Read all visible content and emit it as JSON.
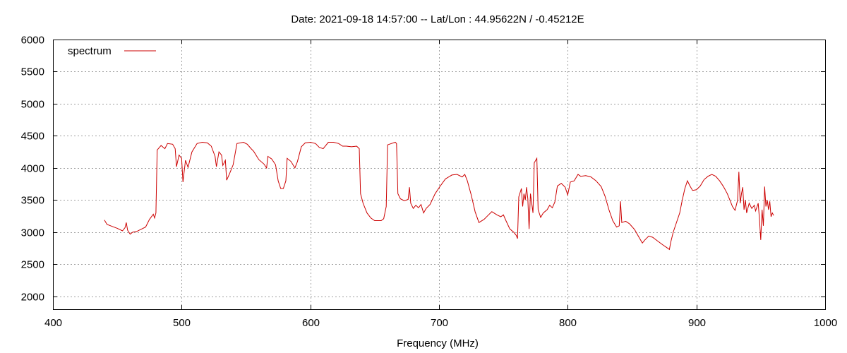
{
  "chart_data": {
    "type": "line",
    "title": "Date: 2021-09-18 14:57:00  --  Lat/Lon : 44.95622N / -0.45212E",
    "xlabel": "Frequency (MHz)",
    "ylabel": "",
    "xlim": [
      400,
      1000
    ],
    "ylim": [
      1800,
      6000
    ],
    "xticks": [
      400,
      500,
      600,
      700,
      800,
      900,
      1000
    ],
    "yticks": [
      2000,
      2500,
      3000,
      3500,
      4000,
      4500,
      5000,
      5500,
      6000
    ],
    "grid": true,
    "legend_position": "top-left",
    "series": [
      {
        "name": "spectrum",
        "color": "#cc0000",
        "points": [
          [
            440,
            3190
          ],
          [
            442,
            3120
          ],
          [
            446,
            3090
          ],
          [
            450,
            3060
          ],
          [
            454,
            3020
          ],
          [
            456,
            3070
          ],
          [
            457,
            3150
          ],
          [
            458,
            3030
          ],
          [
            460,
            2970
          ],
          [
            462,
            3000
          ],
          [
            465,
            3010
          ],
          [
            468,
            3040
          ],
          [
            472,
            3080
          ],
          [
            475,
            3200
          ],
          [
            478,
            3280
          ],
          [
            479,
            3220
          ],
          [
            480,
            3300
          ],
          [
            481,
            4280
          ],
          [
            484,
            4350
          ],
          [
            487,
            4300
          ],
          [
            489,
            4380
          ],
          [
            493,
            4370
          ],
          [
            495,
            4300
          ],
          [
            496,
            4020
          ],
          [
            498,
            4200
          ],
          [
            500,
            4150
          ],
          [
            501,
            3780
          ],
          [
            503,
            4120
          ],
          [
            505,
            4010
          ],
          [
            508,
            4250
          ],
          [
            512,
            4380
          ],
          [
            516,
            4400
          ],
          [
            520,
            4390
          ],
          [
            523,
            4340
          ],
          [
            526,
            4180
          ],
          [
            527,
            4020
          ],
          [
            529,
            4250
          ],
          [
            531,
            4200
          ],
          [
            532,
            4040
          ],
          [
            534,
            4120
          ],
          [
            535,
            3810
          ],
          [
            537,
            3900
          ],
          [
            540,
            4050
          ],
          [
            543,
            4380
          ],
          [
            548,
            4400
          ],
          [
            551,
            4370
          ],
          [
            554,
            4300
          ],
          [
            556,
            4260
          ],
          [
            560,
            4130
          ],
          [
            564,
            4060
          ],
          [
            566,
            4000
          ],
          [
            567,
            4180
          ],
          [
            570,
            4140
          ],
          [
            573,
            4050
          ],
          [
            575,
            3800
          ],
          [
            577,
            3680
          ],
          [
            579,
            3680
          ],
          [
            581,
            3800
          ],
          [
            582,
            4150
          ],
          [
            585,
            4100
          ],
          [
            588,
            4000
          ],
          [
            590,
            4100
          ],
          [
            593,
            4330
          ],
          [
            596,
            4390
          ],
          [
            600,
            4400
          ],
          [
            604,
            4380
          ],
          [
            607,
            4320
          ],
          [
            610,
            4300
          ],
          [
            614,
            4400
          ],
          [
            618,
            4400
          ],
          [
            622,
            4380
          ],
          [
            625,
            4340
          ],
          [
            628,
            4340
          ],
          [
            632,
            4330
          ],
          [
            636,
            4340
          ],
          [
            638,
            4300
          ],
          [
            639,
            3600
          ],
          [
            641,
            3450
          ],
          [
            644,
            3300
          ],
          [
            647,
            3220
          ],
          [
            650,
            3180
          ],
          [
            655,
            3180
          ],
          [
            657,
            3210
          ],
          [
            659,
            3400
          ],
          [
            660,
            4360
          ],
          [
            663,
            4380
          ],
          [
            666,
            4400
          ],
          [
            667,
            4380
          ],
          [
            668,
            3600
          ],
          [
            670,
            3520
          ],
          [
            673,
            3490
          ],
          [
            676,
            3510
          ],
          [
            677,
            3700
          ],
          [
            678,
            3450
          ],
          [
            680,
            3370
          ],
          [
            682,
            3420
          ],
          [
            684,
            3380
          ],
          [
            686,
            3430
          ],
          [
            688,
            3300
          ],
          [
            690,
            3370
          ],
          [
            693,
            3430
          ],
          [
            697,
            3600
          ],
          [
            701,
            3720
          ],
          [
            705,
            3830
          ],
          [
            710,
            3890
          ],
          [
            714,
            3900
          ],
          [
            718,
            3860
          ],
          [
            720,
            3900
          ],
          [
            722,
            3800
          ],
          [
            725,
            3580
          ],
          [
            728,
            3320
          ],
          [
            731,
            3150
          ],
          [
            735,
            3200
          ],
          [
            738,
            3260
          ],
          [
            741,
            3320
          ],
          [
            745,
            3270
          ],
          [
            748,
            3240
          ],
          [
            750,
            3270
          ],
          [
            752,
            3180
          ],
          [
            755,
            3050
          ],
          [
            758,
            3000
          ],
          [
            760,
            2950
          ],
          [
            761,
            2900
          ],
          [
            762,
            3550
          ],
          [
            764,
            3680
          ],
          [
            765,
            3400
          ],
          [
            766,
            3600
          ],
          [
            767,
            3500
          ],
          [
            768,
            3700
          ],
          [
            769,
            3520
          ],
          [
            770,
            3050
          ],
          [
            771,
            3600
          ],
          [
            773,
            3300
          ],
          [
            774,
            4080
          ],
          [
            776,
            4150
          ],
          [
            777,
            3350
          ],
          [
            779,
            3230
          ],
          [
            781,
            3300
          ],
          [
            784,
            3350
          ],
          [
            786,
            3420
          ],
          [
            788,
            3380
          ],
          [
            790,
            3470
          ],
          [
            792,
            3720
          ],
          [
            795,
            3760
          ],
          [
            798,
            3700
          ],
          [
            800,
            3580
          ],
          [
            802,
            3780
          ],
          [
            805,
            3800
          ],
          [
            808,
            3900
          ],
          [
            810,
            3870
          ],
          [
            814,
            3880
          ],
          [
            818,
            3860
          ],
          [
            822,
            3800
          ],
          [
            826,
            3710
          ],
          [
            829,
            3560
          ],
          [
            832,
            3350
          ],
          [
            835,
            3180
          ],
          [
            838,
            3080
          ],
          [
            840,
            3100
          ],
          [
            841,
            3480
          ],
          [
            842,
            3150
          ],
          [
            845,
            3170
          ],
          [
            848,
            3130
          ],
          [
            852,
            3040
          ],
          [
            856,
            2900
          ],
          [
            858,
            2830
          ],
          [
            860,
            2880
          ],
          [
            863,
            2940
          ],
          [
            866,
            2920
          ],
          [
            870,
            2860
          ],
          [
            874,
            2800
          ],
          [
            877,
            2760
          ],
          [
            879,
            2730
          ],
          [
            880,
            2840
          ],
          [
            882,
            3000
          ],
          [
            884,
            3120
          ],
          [
            887,
            3300
          ],
          [
            889,
            3500
          ],
          [
            891,
            3680
          ],
          [
            893,
            3800
          ],
          [
            895,
            3720
          ],
          [
            897,
            3650
          ],
          [
            900,
            3660
          ],
          [
            903,
            3720
          ],
          [
            906,
            3820
          ],
          [
            909,
            3870
          ],
          [
            912,
            3900
          ],
          [
            915,
            3870
          ],
          [
            918,
            3800
          ],
          [
            921,
            3710
          ],
          [
            924,
            3600
          ],
          [
            926,
            3500
          ],
          [
            928,
            3400
          ],
          [
            930,
            3340
          ],
          [
            932,
            3500
          ],
          [
            933,
            3940
          ],
          [
            934,
            3450
          ],
          [
            935,
            3600
          ],
          [
            936,
            3700
          ],
          [
            937,
            3350
          ],
          [
            938,
            3500
          ],
          [
            939,
            3300
          ],
          [
            941,
            3450
          ],
          [
            943,
            3370
          ],
          [
            945,
            3420
          ],
          [
            946,
            3330
          ],
          [
            948,
            3450
          ],
          [
            949,
            3200
          ],
          [
            950,
            2880
          ],
          [
            951,
            3350
          ],
          [
            952,
            3100
          ],
          [
            953,
            3710
          ],
          [
            954,
            3400
          ],
          [
            955,
            3500
          ],
          [
            956,
            3350
          ],
          [
            957,
            3480
          ],
          [
            958,
            3240
          ],
          [
            959,
            3300
          ],
          [
            960,
            3260
          ]
        ]
      }
    ]
  }
}
